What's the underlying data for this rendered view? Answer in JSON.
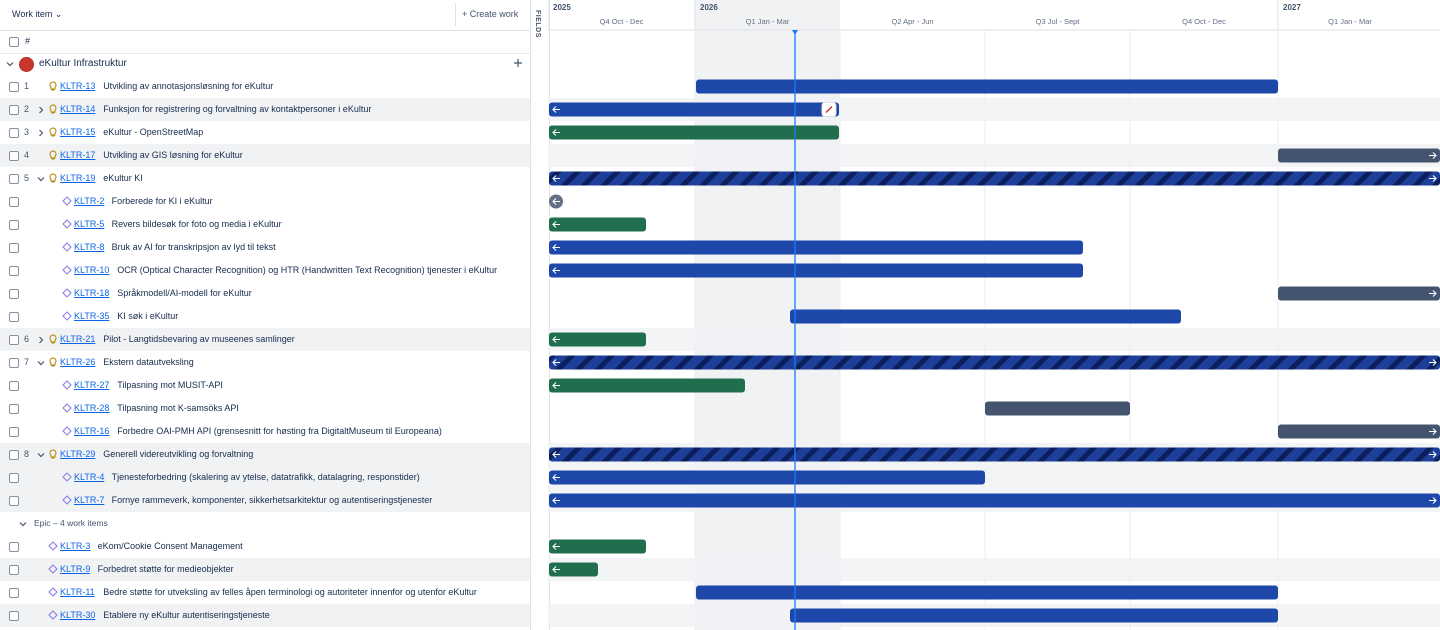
{
  "header": {
    "work_item": "Work item",
    "create": "Create work",
    "fields": "FIELDS",
    "number_col": "#"
  },
  "timeline": {
    "years": [
      "2025",
      "2026",
      "2027"
    ],
    "quarters": [
      "Q4 Oct - Dec",
      "Q1 Jan - Mar",
      "Q2 Apr - Jun",
      "Q3 Jul - Sept",
      "Q4 Oct - Dec",
      "Q1 Jan - Mar"
    ]
  },
  "groups": [
    {
      "title": "eKultur Infrastruktur",
      "rows": [
        {
          "number": 1,
          "key": "KLTR-13",
          "title": "Utvikling av annotasjonsløsning for eKultur"
        },
        {
          "number": 2,
          "key": "KLTR-14",
          "title": "Funksjon for registrering og forvaltning av kontaktpersoner i eKultur"
        },
        {
          "number": 3,
          "key": "KLTR-15",
          "title": "eKultur - OpenStreetMap"
        },
        {
          "number": 4,
          "key": "KLTR-17",
          "title": "Utvikling av GIS løsning for eKultur"
        },
        {
          "number": 5,
          "key": "KLTR-19",
          "title": "eKultur KI"
        },
        {
          "key": "KLTR-2",
          "title": "Forberede for KI i eKultur"
        },
        {
          "key": "KLTR-5",
          "title": "Revers bildesøk for foto og media i eKultur"
        },
        {
          "key": "KLTR-8",
          "title": "Bruk av AI for transkripsjon av lyd til tekst"
        },
        {
          "key": "KLTR-10",
          "title": "OCR (Optical Character Recognition) og HTR (Handwritten Text Recognition) tjenester i eKultur"
        },
        {
          "key": "KLTR-18",
          "title": "Språkmodell/AI-modell for eKultur"
        },
        {
          "key": "KLTR-35",
          "title": "KI søk i eKultur"
        },
        {
          "number": 6,
          "key": "KLTR-21",
          "title": "Pilot - Langtidsbevaring av museenes samlinger"
        },
        {
          "number": 7,
          "key": "KLTR-26",
          "title": "Ekstern datautveksling"
        },
        {
          "key": "KLTR-27",
          "title": "Tilpasning mot MUSIT-API"
        },
        {
          "key": "KLTR-28",
          "title": "Tilpasning mot K-samsöks API"
        },
        {
          "key": "KLTR-16",
          "title": "Forbedre OAI-PMH API (grensesnitt for høsting fra DigitaltMuseum til Europeana)"
        },
        {
          "number": 8,
          "key": "KLTR-29",
          "title": "Generell videreutvikling og forvaltning"
        },
        {
          "key": "KLTR-4",
          "title": "Tjenesteforbedring (skalering av ytelse, datatrafikk, datalagring, responstider)"
        },
        {
          "key": "KLTR-7",
          "title": "Fornye rammeverk, komponenter, sikkerhetsarkitektur og autentiseringstjenester"
        }
      ]
    },
    {
      "title": "Epic – 4 work items",
      "rows": [
        {
          "key": "KLTR-3",
          "title": "eKom/Cookie Consent Management"
        },
        {
          "key": "KLTR-9",
          "title": "Forbedret støtte for medieobjekter"
        },
        {
          "key": "KLTR-11",
          "title": "Bedre støtte for utveksling av felles åpen terminologi og autoriteter innenfor og utenfor eKultur"
        },
        {
          "key": "KLTR-30",
          "title": "Etablere ny eKultur autentiseringstjeneste"
        }
      ]
    }
  ]
}
